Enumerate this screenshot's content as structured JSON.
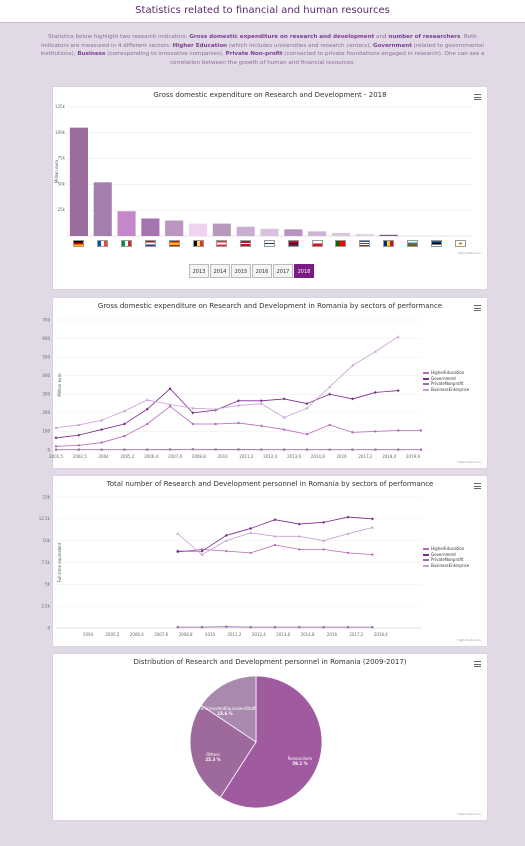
{
  "page": {
    "title": "Statistics related to financial and human resources",
    "intro": {
      "t1": "Statistics below highlight two research indicators: ",
      "b1": "Gross domestic expenditure on research and development",
      "t2": " and ",
      "b2": "number of researchers",
      "t3": ". Both indicators are measured in 4 different sectors: ",
      "b3": "Higher Education",
      "t4": " (which includes universities and research centers), ",
      "b4": "Government",
      "t5": " (related to governmental institutions), ",
      "b5": "Business",
      "t6": " (corresponding to innovative companies), ",
      "b6": "Private Non-profit",
      "t7": " (connected to private foundations engaged in research). One can see a correlation between the growth of human and financial resources."
    }
  },
  "credits": "Highcharts.com",
  "colors": {
    "bar_dark": "#9b6c9e",
    "accent": "#7b1b85",
    "higher": "#b86ab8",
    "government": "#7b2a8a",
    "private": "#9c6fa8",
    "business": "#c7a1d6"
  },
  "year_buttons": {
    "labels": [
      "2013",
      "2014",
      "2015",
      "2016",
      "2017",
      "2018"
    ],
    "active": "2018"
  },
  "flags": [
    "Germany",
    "France",
    "Italy",
    "Netherlands",
    "Spain",
    "Belgium",
    "Austria",
    "Denmark",
    "Finland",
    "Norway",
    "Czechia",
    "Portugal",
    "Greece",
    "Romania",
    "Bulgaria",
    "Estonia",
    "Cyprus"
  ],
  "chart_data": [
    {
      "type": "bar",
      "title": "Gross domestic expenditure on Research and Development - 2018",
      "ylabel": "Million euro",
      "ylim": [
        0,
        125000
      ],
      "yticks": [
        "0",
        "25k",
        "50k",
        "75k",
        "100k",
        "125k"
      ],
      "categories": [
        "Germany",
        "France",
        "Italy",
        "Netherlands",
        "Spain",
        "Belgium",
        "Austria",
        "Denmark",
        "Finland",
        "Norway",
        "Czechia",
        "Portugal",
        "Greece",
        "Romania",
        "Bulgaria",
        "Estonia",
        "Cyprus"
      ],
      "values": [
        105000,
        52000,
        24000,
        17000,
        15000,
        12000,
        12000,
        9000,
        7000,
        6500,
        4500,
        3000,
        2000,
        1200,
        500,
        300,
        150
      ],
      "colors": [
        "#9b6c9e",
        "#a27fae",
        "#c387ca",
        "#a574ae",
        "#b995bf",
        "#efd3ef",
        "#b59aba",
        "#c9aed2",
        "#d9c2dd",
        "#b893c1",
        "#cdb3d4",
        "#d9c7dd",
        "#e3d2e6",
        "#7a6080",
        "#e6d9e8",
        "#efe6f1",
        "#f3ecf4"
      ]
    },
    {
      "type": "line",
      "title": "Gross domestic expenditure on Research and Development in Romania by sectors of performance",
      "ylabel": "Million euro",
      "ylim": [
        0,
        700
      ],
      "yticks": [
        "0",
        "100",
        "200",
        "300",
        "400",
        "500",
        "600",
        "700"
      ],
      "xlabels": [
        "2001,5",
        "2002,5",
        "2004",
        "2005,2",
        "2006,4",
        "2007,6",
        "2008,8",
        "2010",
        "2011,2",
        "2012,4",
        "2013,6",
        "2014,8",
        "2016",
        "2017,2",
        "2018,4",
        "2019,6"
      ],
      "x": [
        2002,
        2003,
        2004,
        2005,
        2006,
        2007,
        2008,
        2009,
        2010,
        2011,
        2012,
        2013,
        2014,
        2015,
        2016,
        2017,
        2018
      ],
      "series": [
        {
          "name": "HigherEducation",
          "values": [
            20,
            25,
            40,
            75,
            140,
            235,
            140,
            140,
            145,
            130,
            110,
            85,
            135,
            95,
            100,
            105,
            105
          ]
        },
        {
          "name": "Government",
          "values": [
            65,
            80,
            110,
            140,
            220,
            330,
            200,
            215,
            265,
            265,
            275,
            250,
            300,
            275,
            310,
            320,
            null
          ]
        },
        {
          "name": "PrivateNonprofit",
          "values": [
            2,
            2,
            2,
            2,
            2,
            3,
            4,
            3,
            3,
            2,
            2,
            2,
            2,
            2,
            2,
            2,
            2
          ]
        },
        {
          "name": "BusinessEnterprise",
          "values": [
            120,
            135,
            160,
            210,
            270,
            245,
            225,
            220,
            240,
            250,
            175,
            225,
            340,
            455,
            530,
            610,
            null
          ]
        }
      ]
    },
    {
      "type": "line",
      "title": "Total number of Research and Development personnel in Romania by sectors of performance",
      "ylabel": "Full-time equivalent",
      "ylim": [
        0,
        15000
      ],
      "yticks": [
        "0",
        "2.5k",
        "5k",
        "7.5k",
        "10k",
        "12.5k",
        "15k"
      ],
      "xlabels": [
        "2004",
        "2005,2",
        "2006,4",
        "2007,6",
        "2008,8",
        "2010",
        "2011,2",
        "2012,4",
        "2013,6",
        "2014,8",
        "2016",
        "2017,2",
        "2018,4"
      ],
      "x": [
        2009,
        2010,
        2011,
        2012,
        2013,
        2014,
        2015,
        2016,
        2017,
        2018
      ],
      "series": [
        {
          "name": "HigherEducation",
          "values": [
            8700,
            9000,
            8800,
            8600,
            9500,
            9000,
            9000,
            8600,
            8400,
            null
          ]
        },
        {
          "name": "Government",
          "values": [
            8800,
            8800,
            10600,
            11400,
            12400,
            11900,
            12100,
            12700,
            12500,
            null
          ]
        },
        {
          "name": "PrivateNonprofit",
          "values": [
            100,
            100,
            150,
            100,
            100,
            100,
            100,
            100,
            100,
            null
          ]
        },
        {
          "name": "BusinessEnterprise",
          "values": [
            10800,
            8400,
            10000,
            10900,
            10500,
            10500,
            10000,
            10800,
            11500,
            null
          ]
        }
      ]
    },
    {
      "type": "pie",
      "title": "Distribution of Research and Development personnel in Romania (2009-2017)",
      "slices": [
        {
          "name": "Researchers",
          "value": 59.1,
          "label": "59.1 %",
          "color": "#a05aa0"
        },
        {
          "name": "Others",
          "value": 25.3,
          "label": "25.3 %",
          "color": "#9e6a9c"
        },
        {
          "name": "TechniciansAndEquivalentStaff",
          "value": 15.6,
          "label": "15.6 %",
          "color": "#a98aae"
        }
      ]
    }
  ]
}
